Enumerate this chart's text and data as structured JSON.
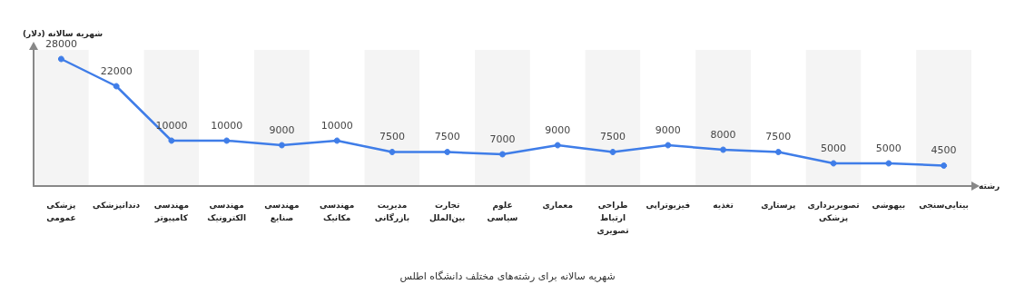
{
  "chart_data": {
    "type": "line",
    "title": "شهریه سالانه برای رشته‌های مختلف دانشگاه اطلس",
    "xlabel": "رشته",
    "ylabel": "شهریه سالانه (دلار)",
    "categories": [
      "پزشکی عمومی",
      "دندانپزشکی",
      "مهندسی کامپیوتر",
      "مهندسی الکترونیک",
      "مهندسی صنایع",
      "مهندسی مکانیک",
      "مدیریت بازرگانی",
      "تجارت بین‌الملل",
      "علوم سیاسی",
      "معماری",
      "طراحی ارتباط تصویری",
      "فیزیوتراپی",
      "تغذیه",
      "پرستاری",
      "تصویربرداری پزشکی",
      "بیهوشی",
      "بینایی‌سنجی"
    ],
    "series": [
      {
        "color": "#3f7de8",
        "values": [
          28000,
          22000,
          10000,
          10000,
          9000,
          10000,
          7500,
          7500,
          7000,
          9000,
          7500,
          9000,
          8000,
          7500,
          5000,
          5000,
          4500
        ]
      }
    ],
    "data_labels": true,
    "marker": "circle",
    "line_style": "solid",
    "tick_labels": "x",
    "grid": false
  }
}
